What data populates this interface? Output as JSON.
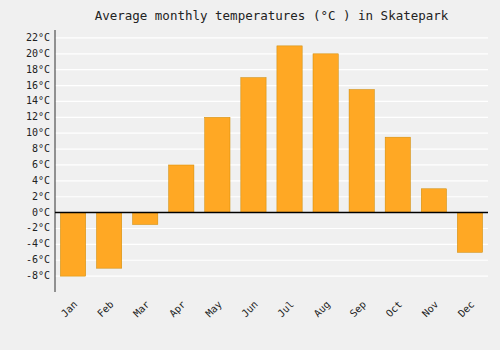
{
  "chart_data": {
    "type": "bar",
    "title": "Average monthly temperatures (°C ) in Skatepark",
    "categories": [
      "Jan",
      "Feb",
      "Mar",
      "Apr",
      "May",
      "Jun",
      "Jul",
      "Aug",
      "Sep",
      "Oct",
      "Nov",
      "Dec"
    ],
    "values": [
      -8,
      -7,
      -1.5,
      6,
      12,
      17,
      21,
      20,
      15.5,
      9.5,
      3,
      -5
    ],
    "color": "#FFA824",
    "ylim": [
      -10,
      23
    ],
    "yticks": [
      {
        "value": -8,
        "label": "-8°C"
      },
      {
        "value": -6,
        "label": "-6°C"
      },
      {
        "value": -4,
        "label": "-4°C"
      },
      {
        "value": -2,
        "label": "-2°C"
      },
      {
        "value": 0,
        "label": "0°C"
      },
      {
        "value": 2,
        "label": "2°C"
      },
      {
        "value": 4,
        "label": "4°C"
      },
      {
        "value": 6,
        "label": "6°C"
      },
      {
        "value": 8,
        "label": "8°C"
      },
      {
        "value": 10,
        "label": "10°C"
      },
      {
        "value": 12,
        "label": "12°C"
      },
      {
        "value": 14,
        "label": "14°C"
      },
      {
        "value": 16,
        "label": "16°C"
      },
      {
        "value": 18,
        "label": "18°C"
      },
      {
        "value": 20,
        "label": "20°C"
      },
      {
        "value": 22,
        "label": "22°C"
      }
    ],
    "grid": true
  }
}
